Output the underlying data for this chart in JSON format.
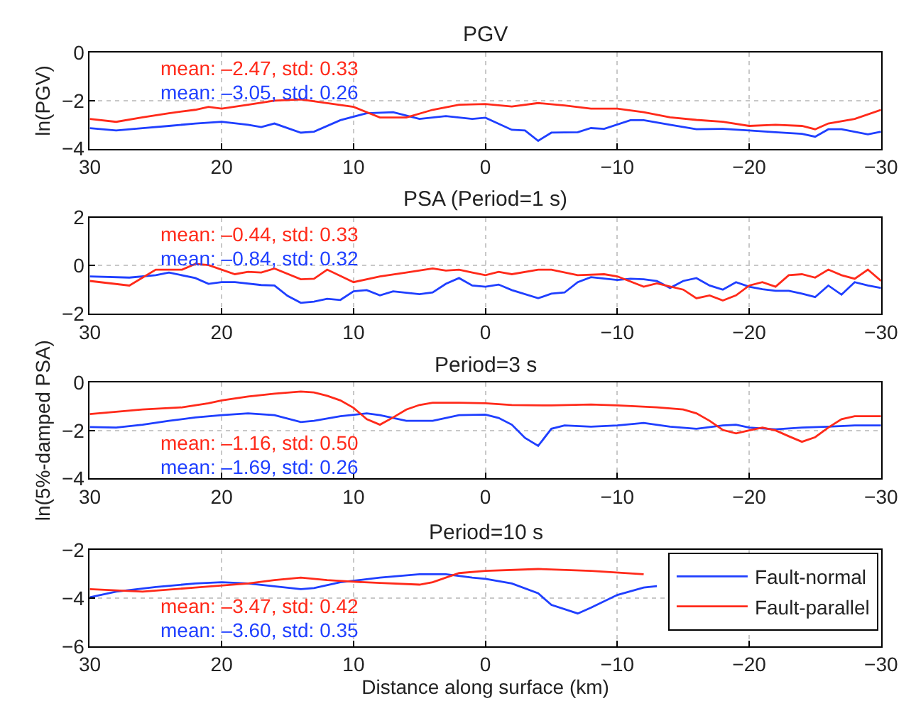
{
  "chart_data": [
    {
      "type": "line",
      "title": "PGV",
      "ylabel": "ln(PGV)",
      "xlim": [
        30,
        -30
      ],
      "xticks": [
        30,
        20,
        10,
        0,
        -10,
        -20,
        -30
      ],
      "ylim": [
        -4,
        0
      ],
      "yticks": [
        -4,
        -2,
        0
      ],
      "grid": true,
      "legend": false,
      "annotations": [
        "mean: –2.47, std: 0.33",
        "mean: –3.05, std: 0.26"
      ],
      "series": [
        {
          "color": "#1f3fff",
          "x": [
            30,
            28,
            26,
            24,
            22,
            20,
            18,
            17,
            16,
            14,
            13,
            11,
            9,
            7,
            5,
            3,
            1,
            0,
            -2,
            -3,
            -4,
            -5,
            -7,
            -8,
            -9,
            -11,
            -12,
            -14,
            -16,
            -18,
            -20,
            -22,
            -24,
            -25,
            -26,
            -27,
            -29,
            -30
          ],
          "values": [
            -3.14,
            -3.24,
            -3.14,
            -3.05,
            -2.95,
            -2.88,
            -3.0,
            -3.1,
            -2.95,
            -3.33,
            -3.29,
            -2.81,
            -2.52,
            -2.48,
            -2.76,
            -2.64,
            -2.76,
            -2.71,
            -3.21,
            -3.24,
            -3.67,
            -3.33,
            -3.31,
            -3.14,
            -3.17,
            -2.81,
            -2.81,
            -3.0,
            -3.19,
            -3.17,
            -3.24,
            -3.31,
            -3.38,
            -3.5,
            -3.19,
            -3.19,
            -3.4,
            -3.29
          ]
        },
        {
          "color": "#ff2a1a",
          "x": [
            30,
            28,
            26,
            24,
            22,
            21,
            20,
            18,
            16,
            14,
            12,
            10,
            8,
            6,
            4,
            2,
            0,
            -2,
            -4,
            -6,
            -8,
            -10,
            -12,
            -14,
            -16,
            -18,
            -20,
            -22,
            -24,
            -25,
            -26,
            -28,
            -30
          ],
          "values": [
            -2.76,
            -2.88,
            -2.69,
            -2.52,
            -2.38,
            -2.26,
            -2.33,
            -2.17,
            -2.0,
            -1.95,
            -2.1,
            -2.26,
            -2.7,
            -2.7,
            -2.38,
            -2.17,
            -2.14,
            -2.24,
            -2.1,
            -2.2,
            -2.33,
            -2.33,
            -2.48,
            -2.69,
            -2.8,
            -2.88,
            -3.05,
            -3.0,
            -3.05,
            -3.19,
            -2.95,
            -2.76,
            -2.38
          ]
        }
      ]
    },
    {
      "type": "line",
      "title": "PSA (Period=1 s)",
      "xlim": [
        30,
        -30
      ],
      "xticks": [
        30,
        20,
        10,
        0,
        -10,
        -20,
        -30
      ],
      "ylim": [
        -2,
        2
      ],
      "yticks": [
        -2,
        0,
        2
      ],
      "grid": true,
      "legend": false,
      "annotations": [
        "mean: –0.44, std: 0.33",
        "mean: –0.84, std: 0.32"
      ],
      "series": [
        {
          "color": "#1f3fff",
          "x": [
            30,
            27,
            25,
            24,
            22,
            21,
            20,
            19,
            17,
            16,
            15,
            14,
            13,
            12,
            11,
            10,
            9,
            8,
            7,
            5,
            4,
            3,
            2,
            1,
            0,
            -1,
            -2,
            -4,
            -5,
            -6,
            -7,
            -8,
            -10,
            -11,
            -12,
            -13,
            -14,
            -15,
            -16,
            -17,
            -18,
            -19,
            -20,
            -21,
            -22,
            -23,
            -24,
            -25,
            -26,
            -27,
            -28,
            -29,
            -30
          ],
          "values": [
            -0.45,
            -0.5,
            -0.4,
            -0.29,
            -0.52,
            -0.76,
            -0.69,
            -0.69,
            -0.81,
            -0.83,
            -1.26,
            -1.55,
            -1.5,
            -1.38,
            -1.43,
            -1.07,
            -1.02,
            -1.24,
            -1.07,
            -1.19,
            -1.12,
            -0.76,
            -0.52,
            -0.83,
            -0.88,
            -0.79,
            -1.02,
            -1.36,
            -1.17,
            -1.12,
            -0.69,
            -0.48,
            -0.6,
            -0.55,
            -0.57,
            -0.64,
            -0.93,
            -0.64,
            -0.52,
            -0.83,
            -1.0,
            -0.69,
            -0.88,
            -0.98,
            -1.05,
            -1.05,
            -1.17,
            -1.31,
            -0.83,
            -1.21,
            -0.69,
            -0.83,
            -0.93
          ]
        },
        {
          "color": "#ff2a1a",
          "x": [
            30,
            27,
            25,
            23,
            22,
            21,
            19,
            18,
            17,
            16,
            14,
            13,
            12,
            10,
            8,
            6,
            4,
            3,
            2,
            1,
            0,
            -1,
            -2,
            -4,
            -5,
            -7,
            -9,
            -10,
            -12,
            -13,
            -15,
            -16,
            -17,
            -18,
            -19,
            -20,
            -21,
            -22,
            -23,
            -24,
            -25,
            -26,
            -27,
            -28,
            -29,
            -30
          ],
          "values": [
            -0.64,
            -0.83,
            -0.17,
            -0.17,
            0.07,
            0.02,
            -0.36,
            -0.26,
            -0.29,
            -0.12,
            -0.57,
            -0.55,
            -0.17,
            -0.69,
            -0.45,
            -0.29,
            -0.12,
            -0.21,
            -0.17,
            -0.29,
            -0.4,
            -0.26,
            -0.36,
            -0.17,
            -0.17,
            -0.4,
            -0.36,
            -0.45,
            -0.88,
            -0.74,
            -1.0,
            -1.36,
            -1.24,
            -1.45,
            -1.24,
            -0.83,
            -0.69,
            -0.88,
            -0.4,
            -0.36,
            -0.5,
            -0.17,
            -0.4,
            -0.55,
            -0.17,
            -0.64
          ]
        }
      ]
    },
    {
      "type": "line",
      "title": "Period=3 s",
      "ylabel": "ln(5%-damped PSA)",
      "xlim": [
        30,
        -30
      ],
      "xticks": [
        30,
        20,
        10,
        0,
        -10,
        -20,
        -30
      ],
      "ylim": [
        -4,
        0
      ],
      "yticks": [
        -4,
        -2,
        0
      ],
      "grid": true,
      "legend": false,
      "annotations": [
        "mean: –1.16, std: 0.50",
        "mean: –1.69, std: 0.26"
      ],
      "series": [
        {
          "color": "#1f3fff",
          "x": [
            30,
            28,
            26,
            24,
            22,
            20,
            18,
            16,
            14,
            13,
            11,
            9,
            8,
            6,
            4,
            2,
            0,
            -1,
            -2,
            -3,
            -4,
            -5,
            -6,
            -8,
            -10,
            -12,
            -14,
            -16,
            -18,
            -19,
            -20,
            -22,
            -24,
            -26,
            -28,
            -30
          ],
          "values": [
            -1.86,
            -1.88,
            -1.76,
            -1.6,
            -1.46,
            -1.36,
            -1.29,
            -1.36,
            -1.65,
            -1.6,
            -1.41,
            -1.29,
            -1.36,
            -1.6,
            -1.6,
            -1.36,
            -1.34,
            -1.48,
            -1.76,
            -2.31,
            -2.64,
            -1.93,
            -1.79,
            -1.84,
            -1.79,
            -1.69,
            -1.84,
            -1.93,
            -1.79,
            -1.76,
            -1.88,
            -1.95,
            -1.88,
            -1.84,
            -1.79,
            -1.79
          ]
        },
        {
          "color": "#ff2a1a",
          "x": [
            30,
            26,
            23,
            21,
            20,
            18,
            16,
            14,
            13,
            12,
            11,
            10,
            9,
            8,
            7,
            6,
            5,
            4,
            2,
            0,
            -2,
            -5,
            -8,
            -10,
            -13,
            -15,
            -16,
            -17,
            -18,
            -19,
            -20,
            -21,
            -22,
            -23,
            -24,
            -25,
            -26,
            -27,
            -28,
            -30
          ],
          "values": [
            -1.32,
            -1.13,
            -1.04,
            -0.87,
            -0.75,
            -0.59,
            -0.47,
            -0.38,
            -0.42,
            -0.56,
            -0.75,
            -1.06,
            -1.53,
            -1.76,
            -1.46,
            -1.13,
            -0.94,
            -0.85,
            -0.85,
            -0.87,
            -0.94,
            -0.96,
            -0.92,
            -0.96,
            -1.04,
            -1.13,
            -1.29,
            -1.6,
            -1.98,
            -2.12,
            -2.0,
            -1.88,
            -2.0,
            -2.24,
            -2.47,
            -2.28,
            -1.88,
            -1.53,
            -1.41,
            -1.41
          ]
        }
      ]
    },
    {
      "type": "line",
      "title": "Period=10 s",
      "xlabel": "Distance along surface (km)",
      "xlim": [
        30,
        -30
      ],
      "xticks": [
        30,
        20,
        10,
        0,
        -10,
        -20,
        -30
      ],
      "ylim": [
        -6,
        -2
      ],
      "yticks": [
        -6,
        -4,
        -2
      ],
      "grid": true,
      "legend": "top right",
      "annotations": [
        "mean: –3.47, std: 0.42",
        "mean: –3.60, std: 0.35"
      ],
      "series": [
        {
          "name": "Fault-normal",
          "color": "#1f3fff",
          "x": [
            30,
            28,
            25,
            22,
            20,
            18,
            16,
            14,
            13,
            11,
            8,
            5,
            3,
            1,
            0,
            -2,
            -4,
            -5,
            -7,
            -8,
            -10,
            -12,
            -13
          ],
          "values": [
            -3.97,
            -3.73,
            -3.54,
            -3.39,
            -3.34,
            -3.39,
            -3.51,
            -3.63,
            -3.58,
            -3.34,
            -3.15,
            -3.01,
            -3.01,
            -3.15,
            -3.2,
            -3.39,
            -3.8,
            -4.28,
            -4.64,
            -4.4,
            -3.87,
            -3.56,
            -3.5
          ]
        },
        {
          "name": "Fault-parallel",
          "color": "#ff2a1a",
          "x": [
            30,
            26,
            22,
            18,
            16,
            14,
            12,
            10,
            8,
            5,
            4,
            2,
            0,
            -4,
            -8,
            -12
          ],
          "values": [
            -3.63,
            -3.73,
            -3.56,
            -3.39,
            -3.25,
            -3.15,
            -3.25,
            -3.32,
            -3.37,
            -3.44,
            -3.34,
            -2.96,
            -2.87,
            -2.79,
            -2.87,
            -3.01
          ]
        }
      ]
    }
  ]
}
